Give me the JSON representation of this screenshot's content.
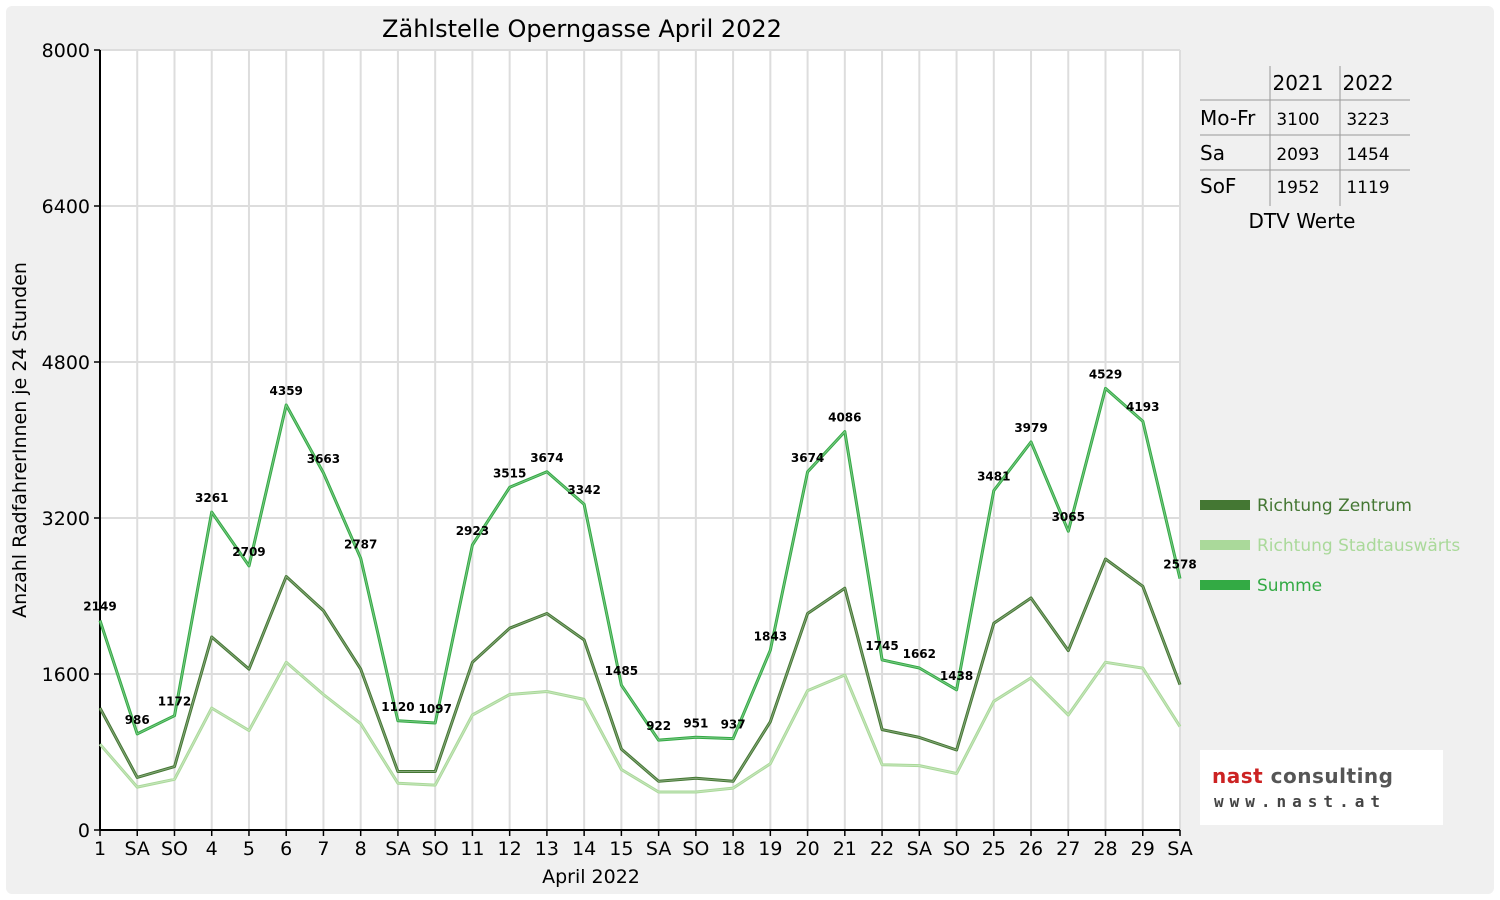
{
  "colors": {
    "zentrum": "#447733",
    "stadtauswaerts": "#aad99a",
    "summe": "#33aa44",
    "holiday": "#dd0000",
    "grid": "#dddddd"
  },
  "chart_data": {
    "type": "line",
    "title": "Zählstelle Operngasse April 2022",
    "xlabel": "April 2022",
    "ylabel": "Anzahl RadfahrerInnen je 24 Stunden",
    "ylim": [
      0,
      8000
    ],
    "yticks": [
      "0",
      "1600",
      "3200",
      "4800",
      "6400",
      "8000"
    ],
    "grid": true,
    "legend_position": "right",
    "categories": [
      "1",
      "SA",
      "SO",
      "4",
      "5",
      "6",
      "7",
      "8",
      "SA",
      "SO",
      "11",
      "12",
      "13",
      "14",
      "15",
      "SA",
      "SO",
      "18",
      "19",
      "20",
      "21",
      "22",
      "SA",
      "SO",
      "25",
      "26",
      "27",
      "28",
      "29",
      "SA"
    ],
    "holiday_flags": [
      false,
      false,
      true,
      false,
      false,
      false,
      false,
      false,
      false,
      true,
      false,
      false,
      false,
      false,
      false,
      false,
      true,
      true,
      false,
      false,
      false,
      false,
      false,
      true,
      false,
      false,
      false,
      false,
      false,
      false
    ],
    "series": [
      {
        "name": "Richtung Zentrum",
        "values": [
          1250,
          540,
          650,
          1980,
          1650,
          2600,
          2250,
          1650,
          600,
          600,
          1720,
          2070,
          2220,
          1950,
          830,
          500,
          530,
          500,
          1110,
          2220,
          2480,
          1030,
          950,
          820,
          2120,
          2380,
          1840,
          2780,
          2500,
          1490
        ]
      },
      {
        "name": "Richtung Stadtauswärts",
        "values": [
          880,
          440,
          520,
          1250,
          1020,
          1720,
          1390,
          1090,
          480,
          460,
          1180,
          1390,
          1420,
          1340,
          620,
          390,
          390,
          430,
          680,
          1430,
          1590,
          670,
          660,
          580,
          1320,
          1560,
          1180,
          1720,
          1660,
          1060
        ]
      },
      {
        "name": "Summe",
        "values": [
          2149,
          986,
          1172,
          3261,
          2709,
          4359,
          3663,
          2787,
          1120,
          1097,
          2923,
          3515,
          3674,
          3342,
          1485,
          922,
          951,
          937,
          1843,
          3674,
          4086,
          1745,
          1662,
          1438,
          3481,
          3979,
          3065,
          4529,
          4193,
          2578
        ],
        "labels": [
          "2149",
          "986",
          "1172",
          "3261",
          "2709",
          "4359",
          "3663",
          "2787",
          "1120",
          "1097",
          "2923",
          "3515",
          "3674",
          "3342",
          "1485",
          "922",
          "951",
          "937",
          "1843",
          "3674",
          "4086",
          "1745",
          "1662",
          "1438",
          "3481",
          "3979",
          "3065",
          "4529",
          "4193",
          "2578"
        ]
      }
    ]
  },
  "dtv_table": {
    "headers": [
      "2021",
      "2022"
    ],
    "rows": [
      {
        "label": "Mo-Fr",
        "v2021": "3100",
        "v2022": "3223"
      },
      {
        "label": "Sa",
        "v2021": "2093",
        "v2022": "1454"
      },
      {
        "label": "SoF",
        "v2021": "1952",
        "v2022": "1119"
      }
    ],
    "caption": "DTV Werte"
  },
  "logo": {
    "name_part1": "nast",
    "name_part2": "consulting",
    "url": "www.nast.at"
  }
}
